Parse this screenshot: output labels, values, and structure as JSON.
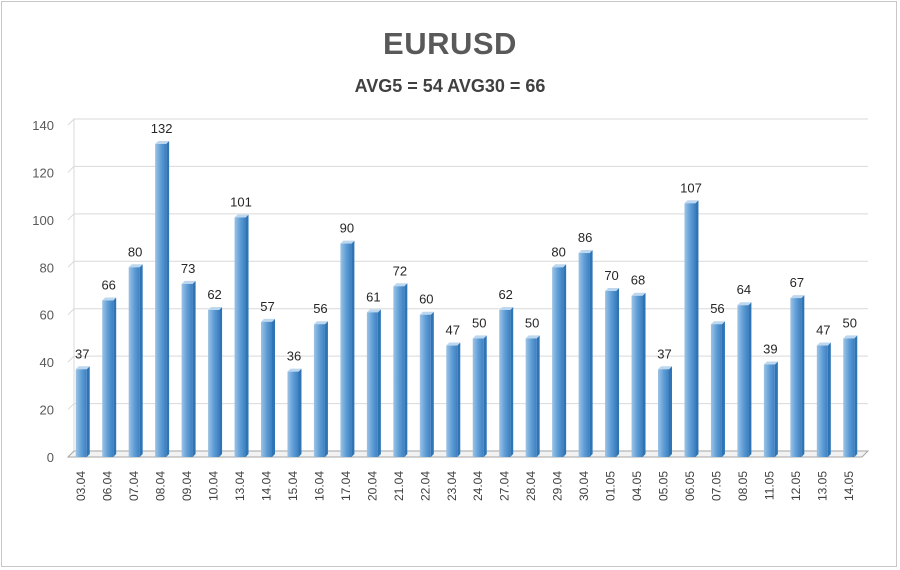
{
  "chart_data": {
    "type": "bar",
    "title": "EURUSD",
    "subtitle": "AVG5 = 54 AVG30 = 66",
    "categories": [
      "03.04",
      "06.04",
      "07.04",
      "08.04",
      "09.04",
      "10.04",
      "13.04",
      "14.04",
      "15.04",
      "16.04",
      "17.04",
      "20.04",
      "21.04",
      "22.04",
      "23.04",
      "24.04",
      "27.04",
      "28.04",
      "29.04",
      "30.04",
      "01.05",
      "04.05",
      "05.05",
      "06.05",
      "07.05",
      "08.05",
      "11.05",
      "12.05",
      "13.05",
      "14.05"
    ],
    "values": [
      37,
      66,
      80,
      132,
      73,
      62,
      101,
      57,
      36,
      56,
      90,
      61,
      72,
      60,
      47,
      50,
      62,
      50,
      80,
      86,
      70,
      68,
      37,
      107,
      56,
      64,
      39,
      67,
      47,
      50
    ],
    "ylim": [
      0,
      140
    ],
    "yticks": [
      0,
      20,
      40,
      60,
      80,
      100,
      120,
      140
    ],
    "grid": true,
    "legend": "none",
    "colors": {
      "bar_front": "#5b9bd5",
      "bar_light": "#9dc3e6",
      "bar_side": "#2e75b6",
      "bar_top": "#bdd7ee",
      "grid": "#d9d9d9",
      "floor": "#a6a6a6"
    }
  }
}
